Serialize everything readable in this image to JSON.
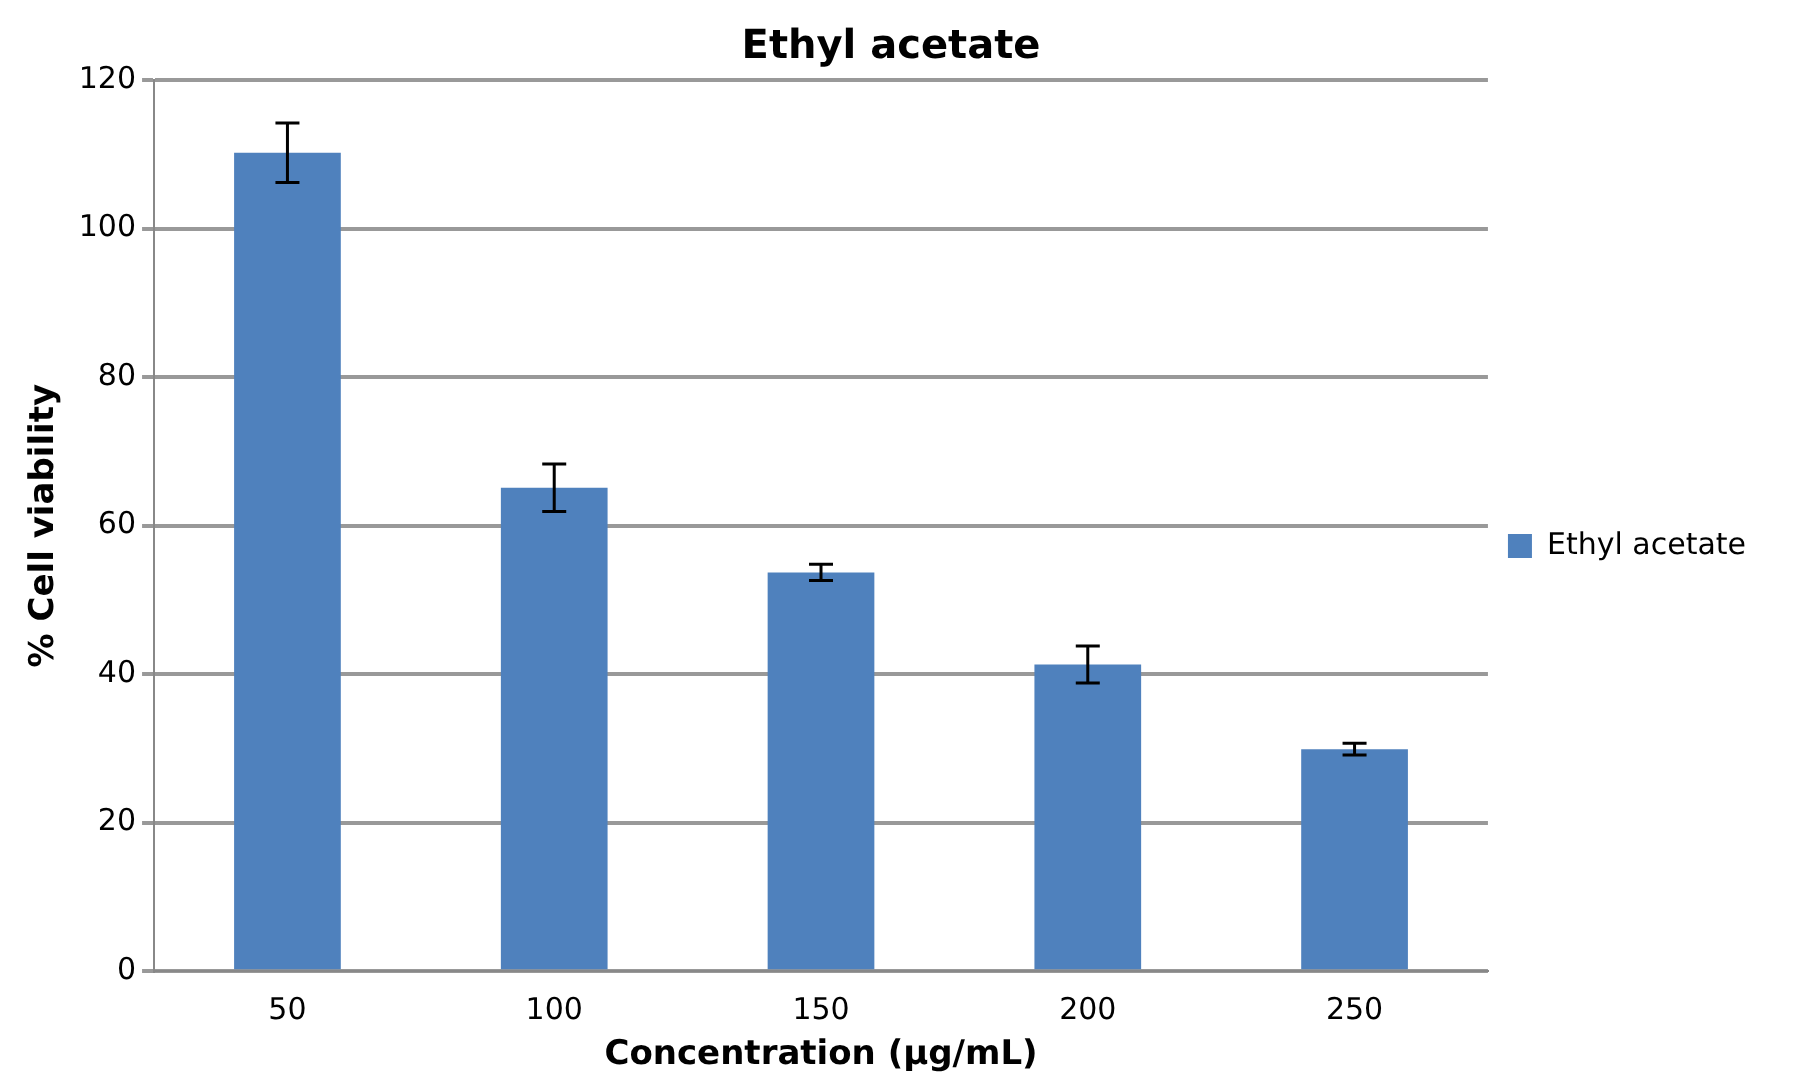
{
  "chart_data": {
    "type": "bar",
    "title": "Ethyl acetate",
    "xlabel": "Concentration (μg/mL)",
    "ylabel": "% Cell viability",
    "categories": [
      "50",
      "100",
      "150",
      "200",
      "250"
    ],
    "series": [
      {
        "name": "Ethyl acetate",
        "color": "#4f81bd",
        "values": [
          110.2,
          65.1,
          53.7,
          41.3,
          29.9
        ],
        "errors": [
          4,
          3.2,
          1.1,
          2.5,
          0.8
        ]
      }
    ],
    "ylim": [
      0,
      120
    ],
    "yticks": [
      0,
      20,
      40,
      60,
      80,
      100,
      120
    ],
    "grid": "y",
    "legend": "right"
  }
}
